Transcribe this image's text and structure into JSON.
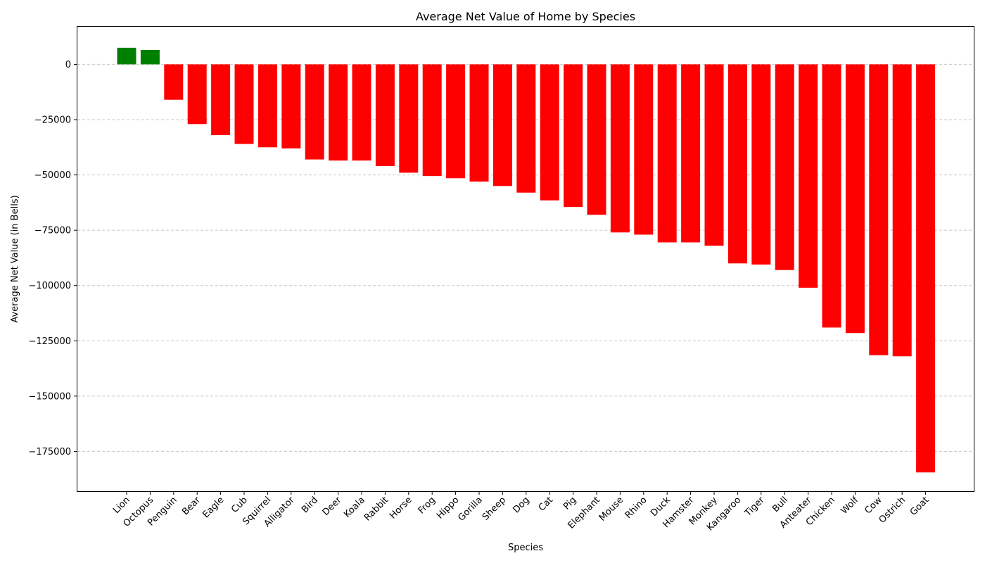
{
  "chart_data": {
    "type": "bar",
    "title": "Average Net Value of Home by Species",
    "xlabel": "Species",
    "ylabel": "Average Net Value (in Bells)",
    "ylim": [
      -193000,
      17000
    ],
    "yticks": [
      0,
      -25000,
      -50000,
      -75000,
      -100000,
      -125000,
      -150000,
      -175000
    ],
    "grid": "y-dashed",
    "positive_color": "#008000",
    "negative_color": "#ff0000",
    "categories": [
      "Lion",
      "Octopus",
      "Penguin",
      "Bear",
      "Eagle",
      "Cub",
      "Squirrel",
      "Alligator",
      "Bird",
      "Deer",
      "Koala",
      "Rabbit",
      "Horse",
      "Frog",
      "Hippo",
      "Gorilla",
      "Sheep",
      "Dog",
      "Cat",
      "Pig",
      "Elephant",
      "Mouse",
      "Rhino",
      "Duck",
      "Hamster",
      "Monkey",
      "Kangaroo",
      "Tiger",
      "Bull",
      "Anteater",
      "Chicken",
      "Wolf",
      "Cow",
      "Ostrich",
      "Goat"
    ],
    "values": [
      7500,
      6500,
      -16000,
      -27000,
      -32000,
      -36000,
      -37500,
      -38000,
      -43000,
      -43500,
      -43500,
      -46000,
      -49000,
      -50500,
      -51500,
      -53000,
      -55000,
      -58000,
      -61500,
      -64500,
      -68000,
      -76000,
      -77000,
      -80500,
      -80500,
      -82000,
      -90000,
      -90500,
      -93000,
      -101000,
      -119000,
      -121500,
      -131500,
      -132000,
      -184500
    ]
  }
}
